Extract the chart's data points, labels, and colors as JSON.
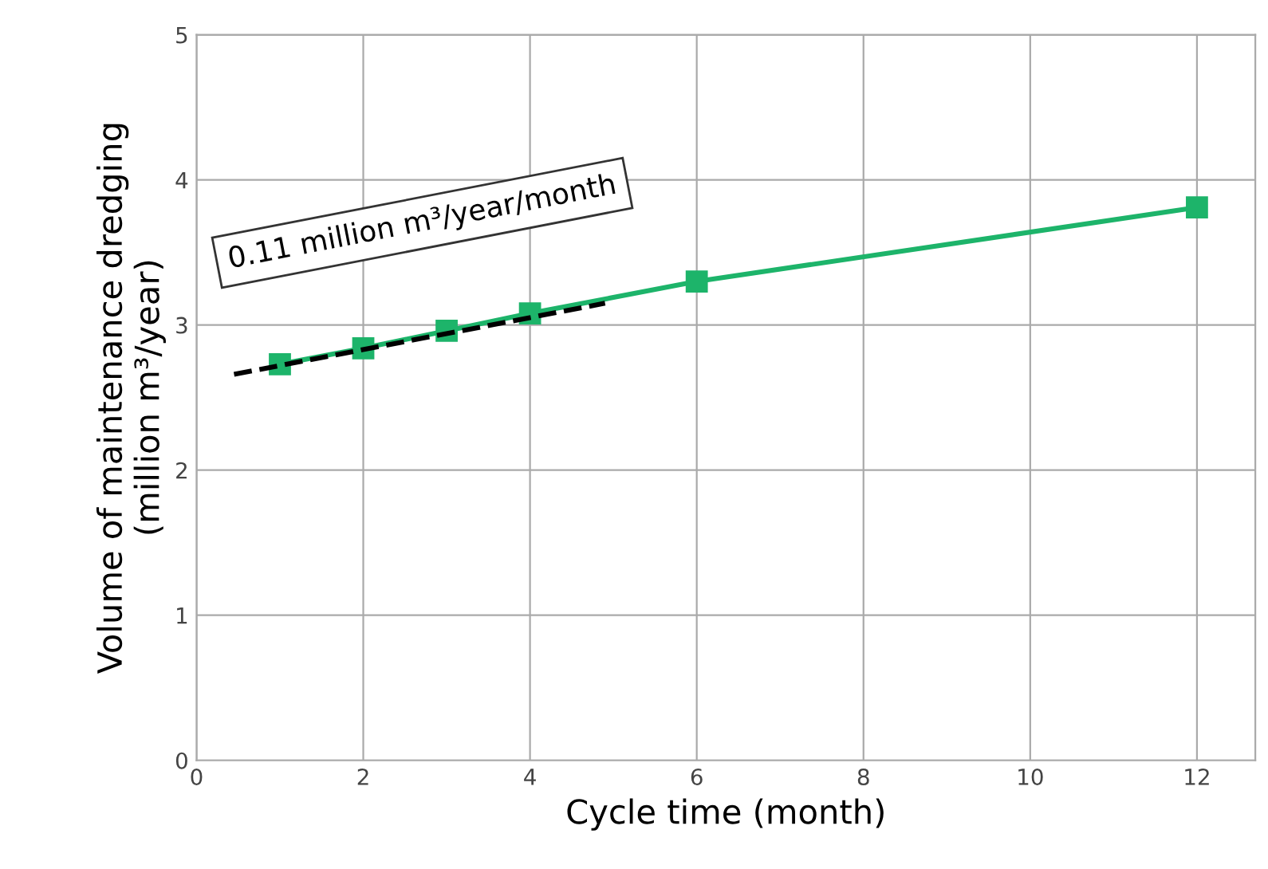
{
  "chart_data": {
    "type": "line",
    "xlabel": "Cycle time (month)",
    "ylabel": "Volume of maintenance dredging\n(million m³/year)",
    "xlim": [
      0,
      12.7
    ],
    "xticks": [
      0,
      2,
      4,
      6,
      8,
      10,
      12
    ],
    "ylim": [
      0,
      5
    ],
    "yticks": [
      0,
      1,
      2,
      3,
      4,
      5
    ],
    "grid": true,
    "series": [
      {
        "color": "#1db46a",
        "x": [
          1,
          2,
          3,
          4,
          6,
          12
        ],
        "values": [
          2.73,
          2.84,
          2.96,
          3.08,
          3.3,
          3.81
        ],
        "marker": "square",
        "line_style": "solid"
      },
      {
        "color": "#000000",
        "x": [
          0.45,
          4.9
        ],
        "values": [
          2.66,
          3.15
        ],
        "marker": "none",
        "line_style": "dashed"
      }
    ],
    "annotations": [
      "0.11 million m³/year/month"
    ]
  }
}
